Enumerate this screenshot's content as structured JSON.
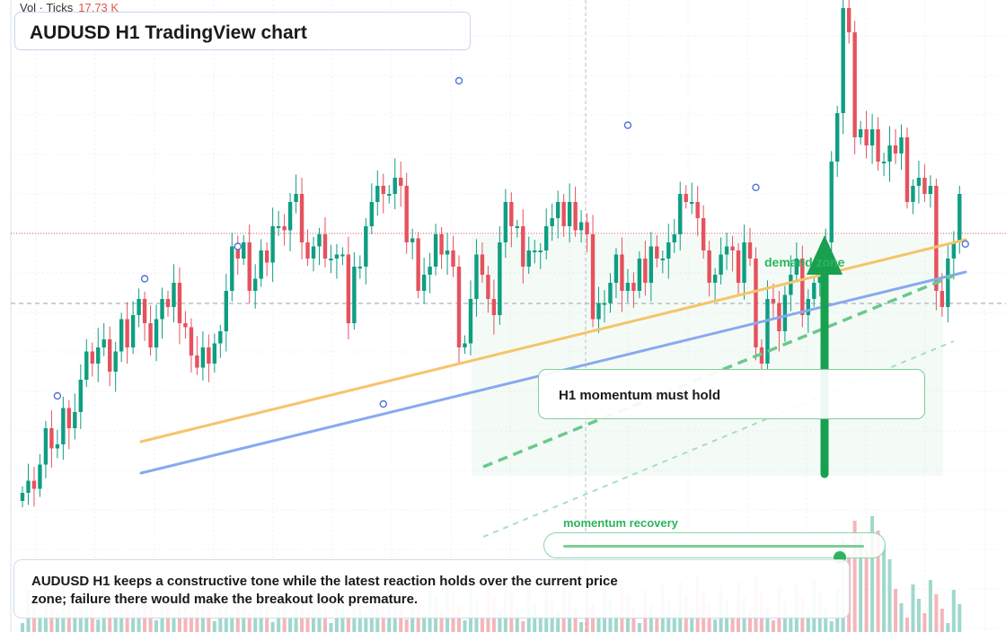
{
  "volume": {
    "label": "Vol · Ticks",
    "value": "17.73 K"
  },
  "title": "AUDUSD H1 TradingView chart",
  "annotations": {
    "note": "H1 momentum must hold",
    "zone_label": "demand zone",
    "slider_label": "momentum recovery",
    "summary": "AUDUSD H1 keeps a constructive tone while the latest reaction holds over the current price zone; failure there would make the breakout look premature."
  },
  "slider": {
    "value": 0.92
  },
  "colors": {
    "up": "#0f9e82",
    "down": "#e5525e",
    "trend_orange": "#f6c46a",
    "trend_blue": "#88a9ef",
    "zone_green": "#2db35d"
  },
  "chart_data": {
    "type": "candlestick",
    "price_range": [
      0,
      700
    ],
    "close": [
      90,
      105,
      95,
      125,
      170,
      145,
      150,
      195,
      170,
      190,
      230,
      265,
      250,
      270,
      280,
      240,
      265,
      305,
      270,
      310,
      330,
      300,
      270,
      305,
      330,
      320,
      350,
      300,
      295,
      260,
      245,
      270,
      250,
      275,
      290,
      340,
      395,
      380,
      400,
      340,
      355,
      390,
      375,
      420,
      420,
      415,
      450,
      460,
      400,
      380,
      395,
      410,
      380,
      380,
      385,
      385,
      300,
      370,
      370,
      420,
      450,
      470,
      460,
      460,
      480,
      470,
      400,
      405,
      340,
      360,
      370,
      410,
      385,
      390,
      370,
      270,
      275,
      330,
      385,
      360,
      330,
      310,
      400,
      450,
      420,
      420,
      370,
      390,
      390,
      390,
      420,
      430,
      450,
      420,
      450,
      415,
      425,
      410,
      305,
      325,
      325,
      350,
      385,
      340,
      350,
      340,
      380,
      350,
      395,
      380,
      380,
      400,
      410,
      460,
      450,
      450,
      430,
      390,
      350,
      360,
      385,
      395,
      390,
      350,
      400,
      380,
      270,
      250,
      330,
      325,
      290,
      335,
      360,
      380,
      310,
      330,
      350,
      370,
      400,
      500,
      560,
      690,
      660,
      530,
      540,
      520,
      540,
      500,
      500,
      520,
      510,
      530,
      450,
      470,
      480,
      460,
      470,
      340,
      320,
      380,
      400,
      460
    ],
    "markers": [
      {
        "candle": 6,
        "price": 210
      },
      {
        "candle": 21,
        "price": 355
      },
      {
        "candle": 37,
        "price": 395
      },
      {
        "candle": 62,
        "price": 200
      },
      {
        "candle": 75,
        "price": 600
      },
      {
        "candle": 104,
        "price": 545
      },
      {
        "candle": 126,
        "price": 468
      },
      {
        "candle": 162,
        "price": 398
      }
    ]
  }
}
